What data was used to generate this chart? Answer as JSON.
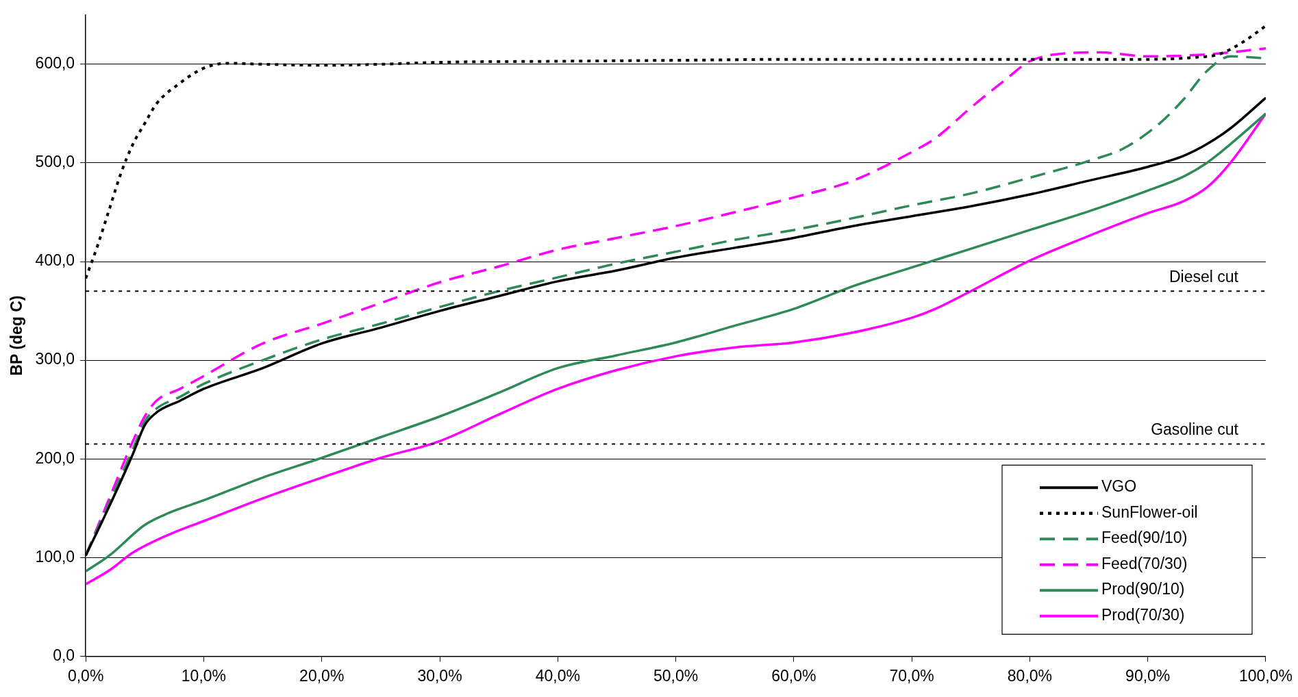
{
  "chart_data": {
    "type": "line",
    "ylabel": "BP (deg C)",
    "xlim": [
      0,
      100
    ],
    "xticks": [
      {
        "value": 0,
        "label": "0,0%"
      },
      {
        "value": 10,
        "label": "10,0%"
      },
      {
        "value": 20,
        "label": "20,0%"
      },
      {
        "value": 30,
        "label": "30,0%"
      },
      {
        "value": 40,
        "label": "40,0%"
      },
      {
        "value": 50,
        "label": "50,0%"
      },
      {
        "value": 60,
        "label": "60,0%"
      },
      {
        "value": 70,
        "label": "70,0%"
      },
      {
        "value": 80,
        "label": "80,0%"
      },
      {
        "value": 90,
        "label": "90,0%"
      },
      {
        "value": 100,
        "label": "100,0%"
      }
    ],
    "ylim": [
      0,
      650
    ],
    "yticks": [
      {
        "value": 0,
        "label": "0,0"
      },
      {
        "value": 100,
        "label": "100,0"
      },
      {
        "value": 200,
        "label": "200,0"
      },
      {
        "value": 300,
        "label": "300,0"
      },
      {
        "value": 400,
        "label": "400,0"
      },
      {
        "value": 500,
        "label": "500,0"
      },
      {
        "value": 600,
        "label": "600,0"
      }
    ],
    "grid": "y",
    "legend": "bottom right",
    "marker": "none",
    "series": [
      {
        "name": "VGO",
        "color": "#000000",
        "line_style": "solid",
        "x": [
          0,
          2,
          4,
          5,
          6,
          8,
          10,
          15,
          20,
          25,
          30,
          35,
          40,
          45,
          50,
          55,
          60,
          65,
          70,
          75,
          80,
          85,
          90,
          93,
          95,
          97,
          100
        ],
        "values": [
          102,
          152,
          205,
          234,
          247,
          259,
          271,
          292,
          317,
          333,
          350,
          365,
          380,
          391,
          404,
          414,
          424,
          436,
          446,
          456,
          468,
          482,
          496,
          507,
          519,
          535,
          566
        ]
      },
      {
        "name": "SunFlower-oil",
        "color": "#000000",
        "line_style": "dotted",
        "x": [
          0,
          1,
          2,
          3,
          4,
          5,
          6,
          8,
          10,
          12,
          15,
          20,
          25,
          30,
          40,
          50,
          60,
          70,
          80,
          90,
          94,
          96,
          98,
          100
        ],
        "values": [
          383,
          416,
          453,
          490,
          519,
          540,
          560,
          581,
          596,
          601,
          600,
          599,
          600,
          602,
          603,
          604,
          605,
          605,
          605,
          605,
          607,
          610,
          622,
          639
        ]
      },
      {
        "name": "Feed(90/10)",
        "color": "#2e8b57",
        "line_style": "dashed",
        "x": [
          0,
          2,
          4,
          5,
          6,
          8,
          10,
          15,
          20,
          25,
          30,
          35,
          40,
          45,
          50,
          55,
          60,
          65,
          70,
          75,
          80,
          85,
          88,
          91,
          93,
          95,
          97,
          100
        ],
        "values": [
          102,
          156,
          210,
          238,
          251,
          263,
          276,
          300,
          321,
          337,
          354,
          370,
          384,
          398,
          410,
          422,
          432,
          444,
          457,
          469,
          485,
          502,
          515,
          540,
          564,
          593,
          608,
          606
        ]
      },
      {
        "name": "Feed(70/30)",
        "color": "#ff00ff",
        "line_style": "dashed",
        "x": [
          0,
          2,
          4,
          5,
          6,
          8,
          10,
          15,
          20,
          25,
          30,
          35,
          40,
          45,
          50,
          55,
          60,
          65,
          70,
          72,
          75,
          78,
          80,
          83,
          86,
          90,
          95,
          100
        ],
        "values": [
          102,
          160,
          218,
          243,
          259,
          271,
          284,
          317,
          337,
          358,
          379,
          395,
          412,
          424,
          436,
          450,
          465,
          482,
          511,
          525,
          556,
          585,
          603,
          611,
          612,
          608,
          610,
          616
        ]
      },
      {
        "name": "Prod(90/10)",
        "color": "#2e8b57",
        "line_style": "solid",
        "x": [
          0,
          2,
          5,
          7,
          10,
          15,
          20,
          25,
          30,
          35,
          40,
          45,
          50,
          55,
          60,
          65,
          70,
          75,
          80,
          85,
          90,
          93,
          95,
          97,
          100
        ],
        "values": [
          86,
          102,
          133,
          145,
          158,
          181,
          201,
          222,
          243,
          267,
          292,
          305,
          318,
          335,
          352,
          375,
          394,
          413,
          432,
          451,
          472,
          486,
          500,
          519,
          550
        ]
      },
      {
        "name": "Prod(70/30)",
        "color": "#ff00ff",
        "line_style": "solid",
        "x": [
          0,
          2,
          4,
          7,
          10,
          15,
          20,
          25,
          30,
          35,
          40,
          45,
          50,
          55,
          60,
          65,
          70,
          72,
          75,
          80,
          85,
          90,
          93,
          95,
          97,
          100
        ],
        "values": [
          73,
          87,
          105,
          123,
          137,
          160,
          181,
          201,
          218,
          245,
          271,
          290,
          304,
          313,
          318,
          328,
          343,
          352,
          370,
          401,
          426,
          449,
          461,
          475,
          500,
          550
        ]
      }
    ],
    "ref_lines": [
      {
        "axis": "y",
        "value": 370,
        "label": "Diesel cut",
        "color": "#000000",
        "line_style": "dotted"
      },
      {
        "axis": "y",
        "value": 215,
        "label": "Gasoline cut",
        "color": "#000000",
        "line_style": "dotted"
      }
    ]
  }
}
